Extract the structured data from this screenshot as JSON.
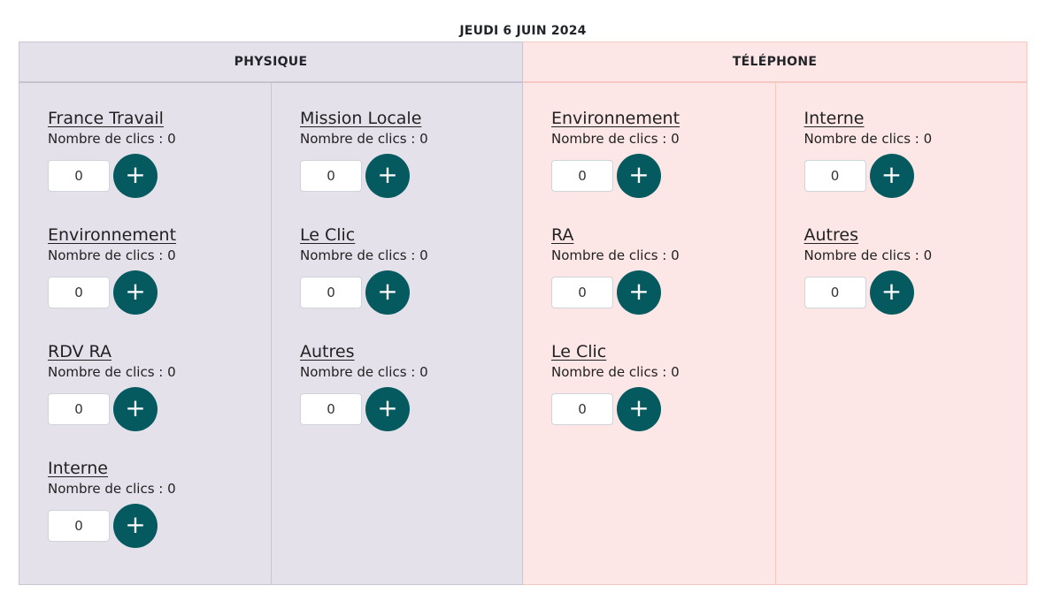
{
  "date_title": "JEUDI 6 JUIN 2024",
  "clicks_prefix": "Nombre de clics : ",
  "plus_symbol": "+",
  "colors": {
    "physique_bg": "#e4e1eb",
    "telephone_bg": "#fde6e6",
    "button_bg": "#055a60"
  },
  "sections": [
    {
      "title": "PHYSIQUE",
      "columns": [
        [
          {
            "label": "France Travail",
            "clicks": "Nombre de clics : 0",
            "value": "0"
          },
          {
            "label": "Environnement",
            "clicks": "Nombre de clics : 0",
            "value": "0"
          },
          {
            "label": "RDV RA",
            "clicks": "Nombre de clics : 0",
            "value": "0"
          },
          {
            "label": "Interne",
            "clicks": "Nombre de clics : 0",
            "value": "0"
          }
        ],
        [
          {
            "label": "Mission Locale",
            "clicks": "Nombre de clics : 0",
            "value": "0"
          },
          {
            "label": "Le Clic",
            "clicks": "Nombre de clics : 0",
            "value": "0"
          },
          {
            "label": "Autres",
            "clicks": "Nombre de clics : 0",
            "value": "0"
          }
        ]
      ]
    },
    {
      "title": "TÉLÉPHONE",
      "columns": [
        [
          {
            "label": "Environnement",
            "clicks": "Nombre de clics : 0",
            "value": "0"
          },
          {
            "label": "RA",
            "clicks": "Nombre de clics : 0",
            "value": "0"
          },
          {
            "label": "Le Clic",
            "clicks": "Nombre de clics : 0",
            "value": "0"
          }
        ],
        [
          {
            "label": "Interne",
            "clicks": "Nombre de clics : 0",
            "value": "0"
          },
          {
            "label": "Autres",
            "clicks": "Nombre de clics : 0",
            "value": "0"
          }
        ]
      ]
    }
  ]
}
